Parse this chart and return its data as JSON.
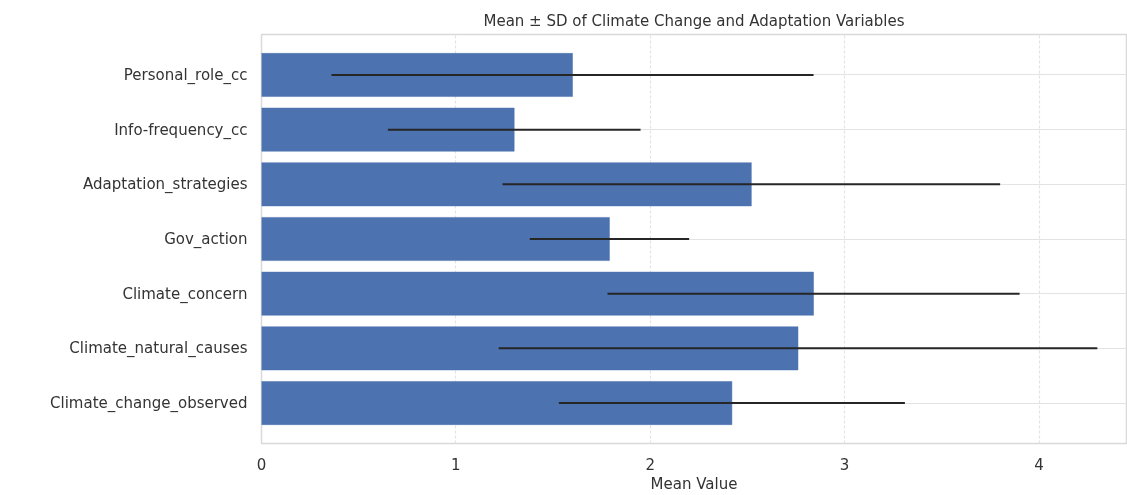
{
  "chart_data": {
    "type": "bar",
    "orientation": "horizontal",
    "title": "Mean ± SD of Climate Change and Adaptation Variables",
    "xlabel": "Mean Value",
    "categories": [
      "Personal_role_cc",
      "Info-frequency_cc",
      "Adaptation_strategies",
      "Gov_action",
      "Climate_concern",
      "Climate_natural_causes",
      "Climate_change_observed"
    ],
    "values": [
      1.6,
      1.3,
      2.52,
      1.79,
      2.84,
      2.76,
      2.42
    ],
    "errors": [
      1.24,
      0.65,
      1.28,
      0.41,
      1.06,
      1.54,
      0.89
    ],
    "color": "#4c72b0",
    "xlim": [
      0,
      4.45
    ],
    "xticks": [
      0,
      1,
      2,
      3,
      4
    ],
    "grid": true
  }
}
